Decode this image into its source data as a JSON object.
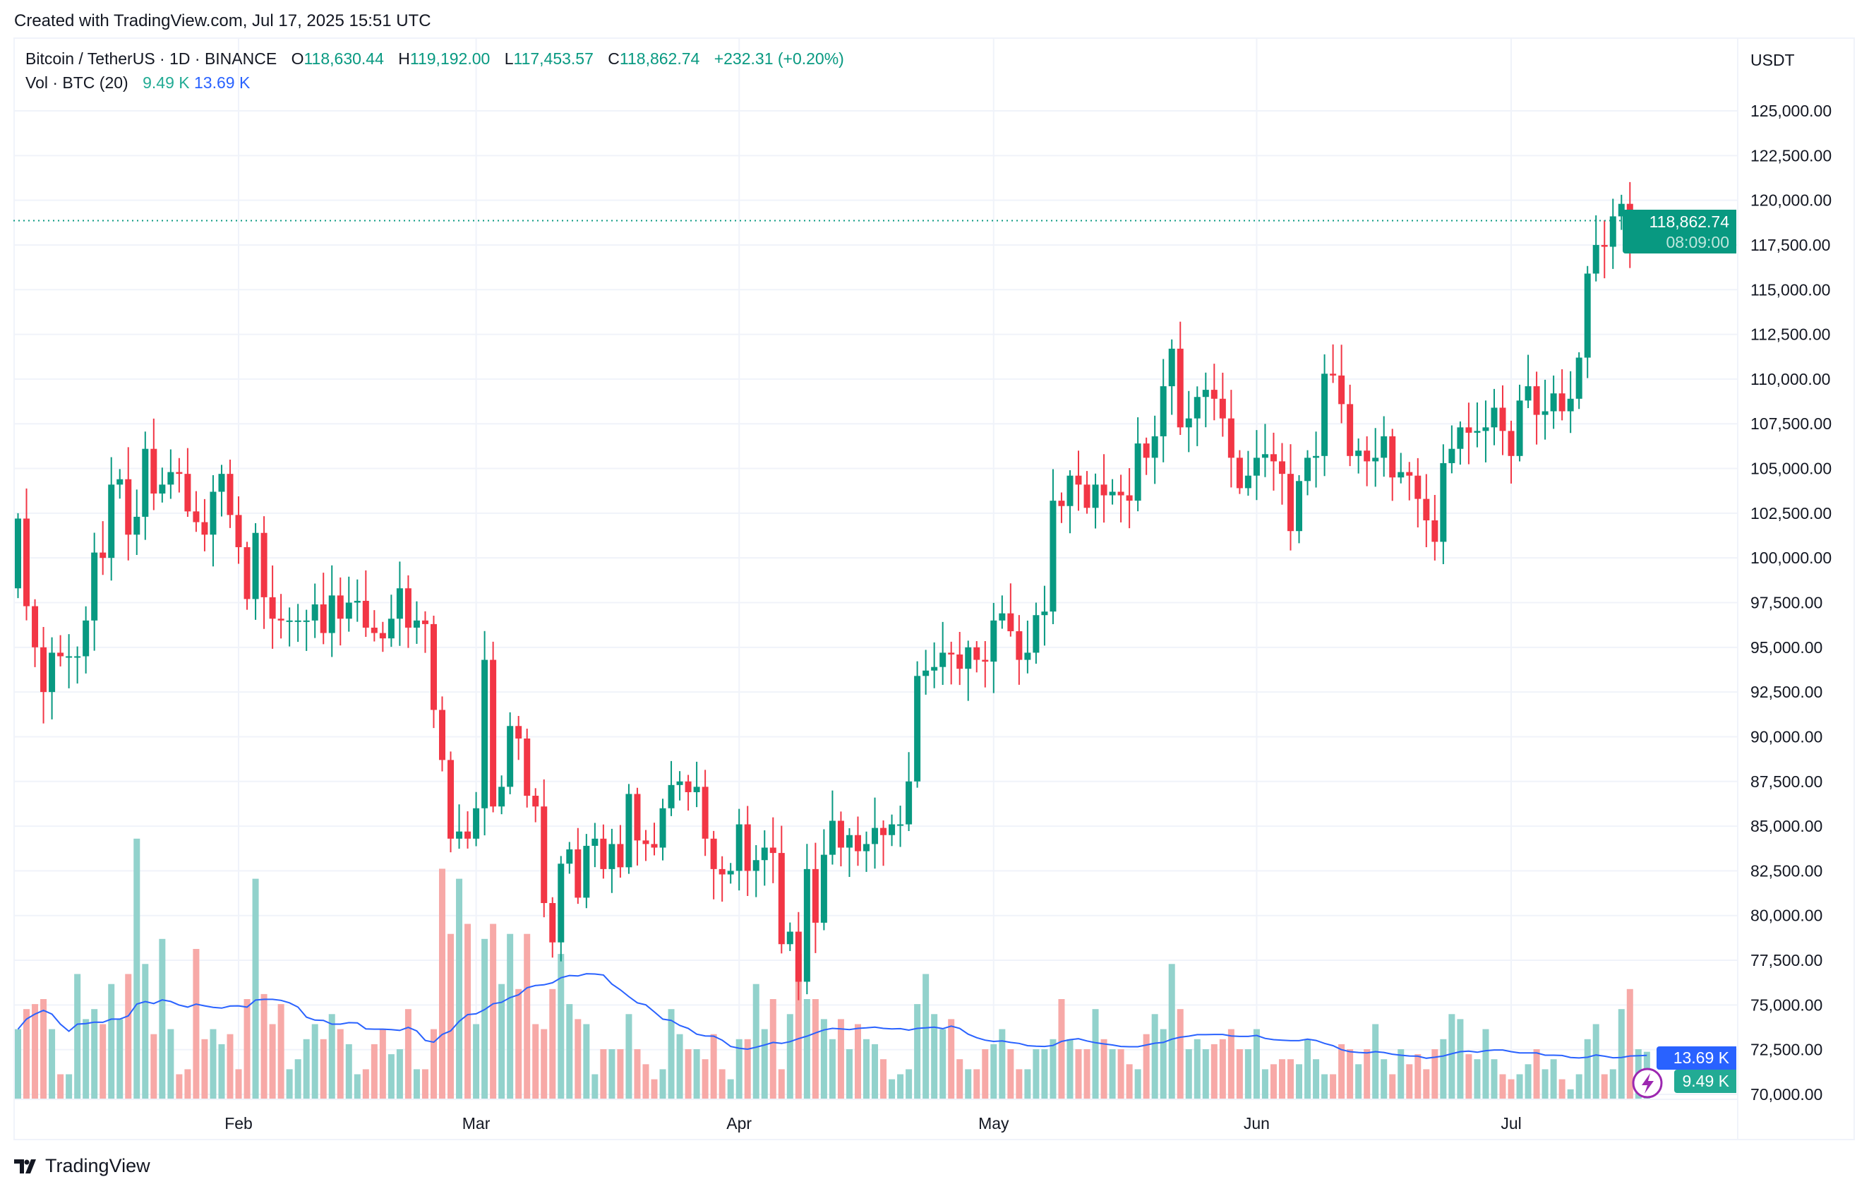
{
  "credit": "Created with TradingView.com, Jul 17, 2025 15:51 UTC",
  "legend": {
    "symbol": "Bitcoin / TetherUS · 1D · BINANCE",
    "o_label": "O",
    "o": "118,630.44",
    "h_label": "H",
    "h": "119,192.00",
    "l_label": "L",
    "l": "117,453.57",
    "c_label": "C",
    "c": "118,862.74",
    "change": "+232.31 (+0.20%)",
    "vol_label": "Vol · BTC (20)",
    "vol": "9.49 K",
    "vol_ma": "13.69 K"
  },
  "currency": "USDT",
  "price_tag": {
    "price": "118,862.74",
    "countdown": "08:09:00"
  },
  "volume_tags": {
    "ma": "13.69 K",
    "vol": "9.49 K"
  },
  "logo": "TradingView",
  "colors": {
    "up": "#089981",
    "down": "#f23645",
    "vol_up": "#92d2cc",
    "vol_down": "#f7a9a7",
    "vol_ma": "#2962ff",
    "grid": "#f0f3fa"
  },
  "chart_data": {
    "type": "candlestick",
    "first_date": "2025-01-06",
    "last_date": "2025-07-17",
    "x_ticks": [
      "Feb",
      "Mar",
      "Apr",
      "May",
      "Jun",
      "Jul"
    ],
    "y_ticks": [
      "70,000.00",
      "72,500.00",
      "75,000.00",
      "77,500.00",
      "80,000.00",
      "82,500.00",
      "85,000.00",
      "87,500.00",
      "90,000.00",
      "92,500.00",
      "95,000.00",
      "97,500.00",
      "100,000.00",
      "102,500.00",
      "105,000.00",
      "107,500.00",
      "110,000.00",
      "112,500.00",
      "115,000.00",
      "117,500.00",
      "120,000.00",
      "122,500.00",
      "125,000.00"
    ],
    "ylim": [
      70000,
      125000
    ],
    "grid": true,
    "first_open": 98300,
    "last_candle": {
      "open": 118630.44,
      "high": 119192.0,
      "low": 117453.57,
      "close": 118862.74
    },
    "close_k": [
      102.2,
      97.3,
      95.0,
      92.5,
      94.7,
      94.5,
      94.5,
      94.5,
      96.5,
      100.3,
      100.0,
      104.1,
      104.4,
      101.3,
      102.3,
      106.1,
      103.6,
      104.1,
      104.8,
      104.7,
      102.6,
      102.0,
      101.3,
      103.7,
      104.7,
      102.4,
      100.6,
      97.7,
      101.4,
      97.8,
      96.6,
      96.5,
      96.5,
      96.5,
      96.5,
      97.4,
      95.8,
      97.9,
      96.6,
      97.5,
      97.6,
      96.1,
      95.8,
      95.5,
      96.6,
      98.3,
      96.1,
      96.5,
      96.3,
      91.5,
      88.7,
      84.3,
      84.7,
      84.3,
      86.0,
      94.3,
      86.1,
      87.2,
      90.6,
      89.9,
      86.7,
      86.1,
      80.7,
      78.5,
      82.9,
      83.7,
      81.0,
      83.9,
      84.3,
      82.6,
      84.0,
      82.7,
      86.8,
      84.2,
      84.0,
      83.8,
      86.0,
      87.3,
      87.5,
      86.9,
      87.2,
      84.3,
      82.6,
      82.3,
      82.5,
      85.1,
      82.5,
      83.1,
      83.8,
      83.5,
      78.4,
      79.1,
      76.3,
      82.6,
      79.6,
      83.4,
      85.3,
      83.8,
      84.5,
      83.6,
      84.0,
      84.9,
      84.5,
      85.1,
      85.1,
      87.5,
      93.4,
      93.7,
      93.9,
      94.7,
      94.6,
      93.8,
      95.0,
      94.3,
      94.2,
      96.5,
      96.9,
      95.9,
      94.3,
      94.7,
      96.8,
      97.0,
      103.2,
      102.9,
      104.6,
      104.1,
      102.8,
      104.1,
      103.5,
      103.7,
      103.5,
      103.2,
      106.4,
      105.6,
      106.8,
      109.6,
      111.7,
      107.3,
      107.8,
      109.0,
      109.4,
      108.9,
      107.8,
      105.6,
      103.9,
      104.6,
      105.6,
      105.8,
      105.4,
      104.7,
      101.5,
      104.3,
      105.6,
      105.7,
      110.3,
      110.2,
      108.6,
      105.7,
      106.0,
      105.4,
      105.6,
      106.8,
      104.5,
      104.8,
      104.6,
      103.3,
      102.1,
      100.9,
      105.3,
      106.1,
      107.3,
      107.0,
      107.1,
      107.3,
      108.4,
      107.1,
      105.7,
      108.8,
      109.6,
      108.0,
      108.2,
      109.2,
      108.2,
      108.9,
      111.2,
      115.9,
      117.5,
      117.4,
      119.1,
      119.8,
      117.7,
      118.63,
      118.86274
    ],
    "volume_k": [
      14,
      18,
      19,
      20,
      14,
      5,
      5,
      25,
      16,
      18,
      15,
      23,
      16,
      25,
      52,
      27,
      13,
      32,
      14,
      5,
      6,
      30,
      12,
      14,
      11,
      13,
      6,
      20,
      44,
      21,
      15,
      19,
      6,
      8,
      12,
      15,
      12,
      17,
      14,
      11,
      5,
      6,
      11,
      14,
      9,
      10,
      18,
      6,
      6,
      14,
      46,
      33,
      44,
      35,
      15,
      32,
      35,
      23,
      33,
      22,
      33,
      15,
      14,
      22,
      29,
      19,
      16,
      15,
      5,
      10,
      10,
      10,
      17,
      10,
      7,
      4,
      6,
      18,
      13,
      10,
      10,
      8,
      13,
      6,
      4,
      12,
      12,
      23,
      14,
      20,
      6,
      17,
      29,
      20,
      20,
      16,
      12,
      16,
      10,
      15,
      12,
      11,
      8,
      4,
      5,
      6,
      19,
      25,
      17,
      14,
      16,
      8,
      6,
      6,
      10,
      11,
      14,
      10,
      6,
      6,
      10,
      10,
      12,
      20,
      12,
      10,
      10,
      18,
      12,
      10,
      10,
      7,
      6,
      13,
      17,
      14,
      27,
      18,
      10,
      12,
      10,
      11,
      12,
      14,
      10,
      10,
      14,
      6,
      7,
      8,
      8,
      7,
      12,
      8,
      5,
      5,
      11,
      10,
      7,
      10,
      15,
      8,
      5,
      10,
      7,
      9,
      6,
      10,
      12,
      17,
      16,
      9,
      8,
      14,
      8,
      5,
      4,
      5,
      7,
      10,
      6,
      8,
      4,
      2,
      5,
      12,
      15,
      5,
      6,
      18,
      22,
      10,
      9.49
    ],
    "volume_ma_length": 20
  }
}
